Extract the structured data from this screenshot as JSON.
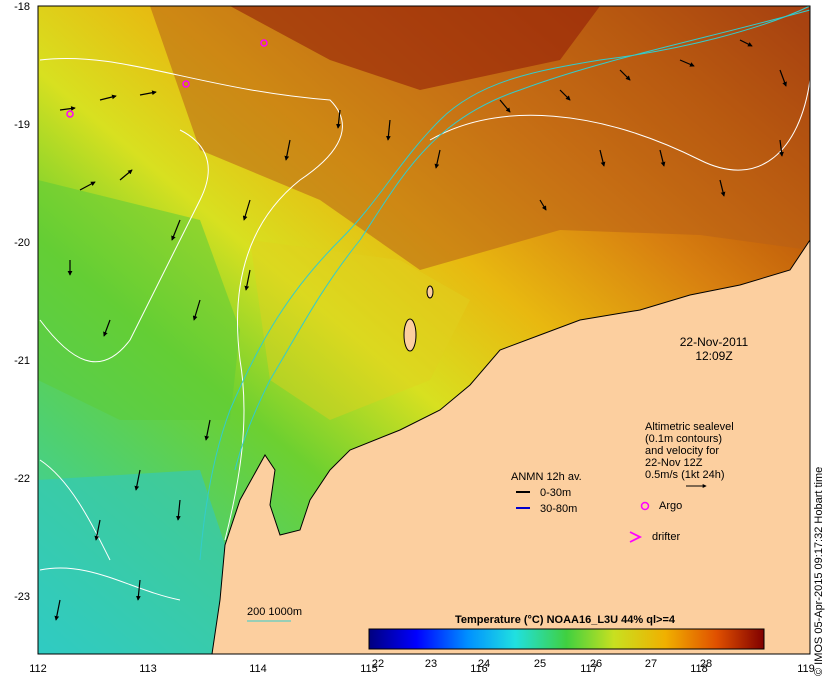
{
  "map": {
    "lon_ticks": [
      "112",
      "113",
      "114",
      "115",
      "116",
      "117",
      "118",
      "119"
    ],
    "lat_ticks": [
      "-18",
      "-19",
      "-20",
      "-21",
      "-22",
      "-23"
    ],
    "date": "22-Nov-2011",
    "time": "12:09Z",
    "altimetry_note": {
      "l1": "Altimetric sealevel",
      "l2": "(0.1m contours)",
      "l3": "and velocity for",
      "l4": "22-Nov 12Z",
      "l5": "0.5m/s (1kt 24h)"
    },
    "anmn": {
      "title": "ANMN 12h av.",
      "depth1": "0-30m",
      "depth2": "30-80m",
      "color1": "#000000",
      "color2": "#0000cc"
    },
    "argo_label": "Argo",
    "drifter_label": "drifter",
    "argo_color": "#ff00ff",
    "bathymetry_label": "200  1000m",
    "bathymetry_color": "#33cccc",
    "land_color": "#fccf9f",
    "colorbar": {
      "title": "Temperature (°C) NOAA16_L3U 44% ql>=4",
      "ticks": [
        "22",
        "23",
        "24",
        "25",
        "26",
        "27",
        "28"
      ]
    },
    "credit": "© IMOS 05-Apr-2015 09:17:32 Hobart time"
  }
}
